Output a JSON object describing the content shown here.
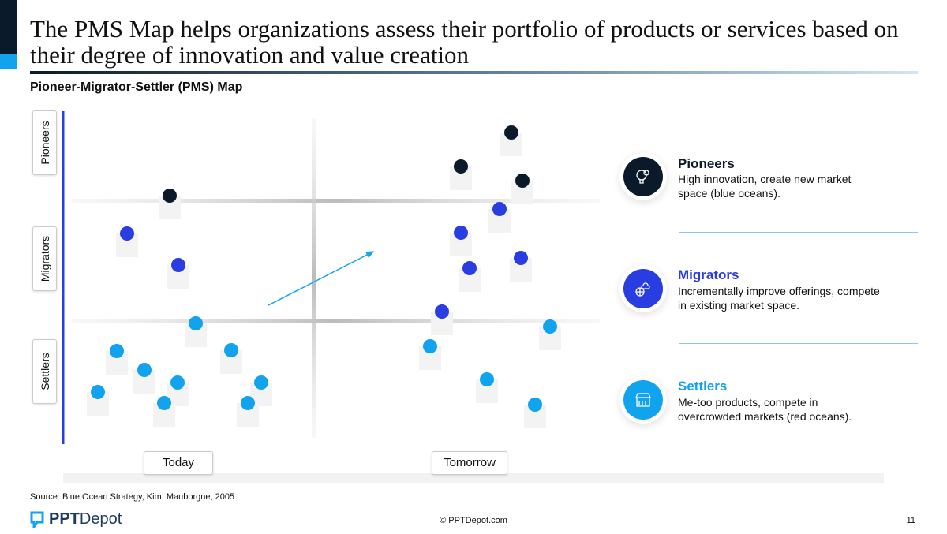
{
  "header": {
    "title": "The PMS Map helps organizations assess their portfolio of products or services based on their degree of innovation and value creation",
    "subtitle": "Pioneer-Migrator-Settler (PMS) Map"
  },
  "map": {
    "y_labels": [
      "Pioneers",
      "Migrators",
      "Settlers"
    ],
    "x_labels": [
      "Today",
      "Tomorrow"
    ]
  },
  "legend": [
    {
      "title": "Pioneers",
      "desc": "High innovation, create new market space (blue oceans).",
      "color": "#0b1a2b",
      "icon": "lightbulb-gear-icon"
    },
    {
      "title": "Migrators",
      "desc": "Incrementally improve offerings, compete in existing market space.",
      "color": "#2a3de0",
      "icon": "globe-cloud-icon"
    },
    {
      "title": "Settlers",
      "desc": "Me-too products, compete in overcrowded markets (red oceans).",
      "color": "#12a3ee",
      "icon": "storefront-icon"
    }
  ],
  "footer": {
    "source": "Source: Blue Ocean Strategy, Kim, Mauborgne, 2005",
    "logo_bold": "PPT",
    "logo_rest": "Depot",
    "copyright": "© PPTDepot.com",
    "page": "11"
  }
}
